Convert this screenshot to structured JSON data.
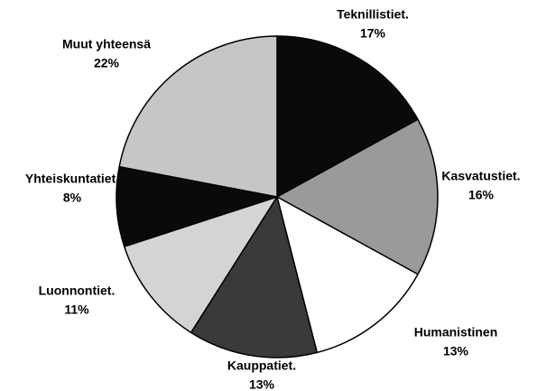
{
  "chart_data": {
    "type": "pie",
    "categories": [
      "Teknillistiet.",
      "Kasvatustiet.",
      "Humanistinen",
      "Kauppatiet.",
      "Luonnontiet.",
      "Yhteiskuntatiet.",
      "Muut yhteensä"
    ],
    "values": [
      17,
      16,
      13,
      13,
      11,
      8,
      22
    ],
    "value_labels": [
      "17%",
      "16%",
      "13%",
      "13%",
      "11%",
      "8%",
      "22%"
    ],
    "colors": [
      "#0a0a0a",
      "#9a9a9a",
      "#ffffff",
      "#3a3a3a",
      "#d4d4d4",
      "#0a0a0a",
      "#c6c6c6"
    ]
  }
}
